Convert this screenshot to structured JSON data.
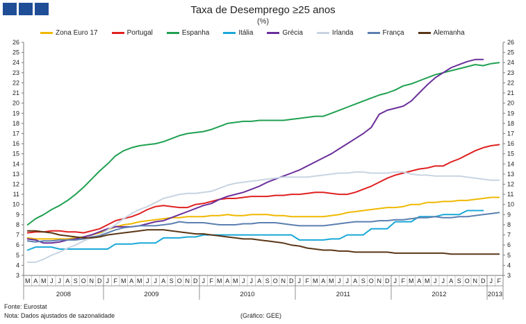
{
  "header": {
    "title": "Taxa de Desemprego ≥25 anos",
    "subtitle": "(%)"
  },
  "footer": {
    "source": "Fonte: Eurostat",
    "note": "Nota: Dados ajustados de sazonalidade",
    "credit": "(Gráfico: GEE)"
  },
  "chart_data": {
    "type": "line",
    "title": "Taxa de Desemprego ≥25 anos",
    "subtitle": "(%)",
    "ylim": [
      3,
      26
    ],
    "y_ticks": [
      3,
      4,
      5,
      6,
      7,
      8,
      9,
      10,
      11,
      12,
      13,
      14,
      15,
      16,
      17,
      18,
      19,
      20,
      21,
      22,
      23,
      24,
      25,
      26
    ],
    "grid": false,
    "legend_position": "top",
    "x": [
      "2008-03",
      "2008-04",
      "2008-05",
      "2008-06",
      "2008-07",
      "2008-08",
      "2008-09",
      "2008-10",
      "2008-11",
      "2008-12",
      "2009-01",
      "2009-02",
      "2009-03",
      "2009-04",
      "2009-05",
      "2009-06",
      "2009-07",
      "2009-08",
      "2009-09",
      "2009-10",
      "2009-11",
      "2009-12",
      "2010-01",
      "2010-02",
      "2010-03",
      "2010-04",
      "2010-05",
      "2010-06",
      "2010-07",
      "2010-08",
      "2010-09",
      "2010-10",
      "2010-11",
      "2010-12",
      "2011-01",
      "2011-02",
      "2011-03",
      "2011-04",
      "2011-05",
      "2011-06",
      "2011-07",
      "2011-08",
      "2011-09",
      "2011-10",
      "2011-11",
      "2011-12",
      "2012-01",
      "2012-02",
      "2012-03",
      "2012-04",
      "2012-05",
      "2012-06",
      "2012-07",
      "2012-08",
      "2012-09",
      "2012-10",
      "2012-11",
      "2012-12",
      "2013-01",
      "2013-02"
    ],
    "x_tick_labels": [
      "M",
      "A",
      "M",
      "J",
      "J",
      "A",
      "S",
      "O",
      "N",
      "D",
      "J",
      "F",
      "M",
      "A",
      "M",
      "J",
      "J",
      "A",
      "S",
      "O",
      "N",
      "D",
      "J",
      "F",
      "M",
      "A",
      "M",
      "J",
      "J",
      "A",
      "S",
      "O",
      "N",
      "D",
      "J",
      "F",
      "M",
      "A",
      "M",
      "J",
      "J",
      "A",
      "S",
      "O",
      "N",
      "D",
      "J",
      "F",
      "M",
      "A",
      "M",
      "J",
      "J",
      "A",
      "S",
      "O",
      "N",
      "D",
      "J",
      "F"
    ],
    "years": [
      {
        "label": "2008",
        "start": 0,
        "end": 9
      },
      {
        "label": "2009",
        "start": 10,
        "end": 21
      },
      {
        "label": "2010",
        "start": 22,
        "end": 33
      },
      {
        "label": "2011",
        "start": 34,
        "end": 45
      },
      {
        "label": "2012",
        "start": 46,
        "end": 57
      },
      {
        "label": "2013",
        "start": 58,
        "end": 59
      }
    ],
    "series": [
      {
        "name": "Zona Euro 17",
        "color": "#f0b800",
        "values": [
          6.7,
          6.6,
          6.6,
          6.6,
          6.6,
          6.6,
          6.7,
          6.8,
          7.0,
          7.2,
          7.5,
          7.8,
          8.0,
          8.1,
          8.3,
          8.4,
          8.5,
          8.6,
          8.7,
          8.7,
          8.8,
          8.8,
          8.8,
          8.9,
          8.9,
          9.0,
          8.9,
          8.9,
          9.0,
          9.0,
          9.0,
          8.9,
          8.9,
          8.8,
          8.8,
          8.8,
          8.8,
          8.8,
          8.9,
          9.0,
          9.2,
          9.3,
          9.4,
          9.5,
          9.6,
          9.7,
          9.7,
          9.8,
          10.0,
          10.0,
          10.2,
          10.2,
          10.3,
          10.3,
          10.4,
          10.4,
          10.5,
          10.6,
          10.7,
          10.7
        ]
      },
      {
        "name": "Portugal",
        "color": "#e02020",
        "values": [
          7.2,
          7.3,
          7.3,
          7.4,
          7.4,
          7.3,
          7.3,
          7.2,
          7.4,
          7.6,
          8.0,
          8.4,
          8.6,
          8.8,
          9.1,
          9.5,
          9.8,
          9.9,
          9.8,
          9.7,
          9.7,
          10.0,
          10.1,
          10.3,
          10.5,
          10.6,
          10.6,
          10.7,
          10.8,
          10.8,
          10.8,
          10.9,
          10.9,
          11.0,
          11.0,
          11.1,
          11.2,
          11.2,
          11.1,
          11.0,
          11.0,
          11.2,
          11.5,
          11.8,
          12.2,
          12.6,
          12.9,
          13.1,
          13.3,
          13.5,
          13.6,
          13.8,
          13.8,
          14.2,
          14.5,
          14.9,
          15.3,
          15.6,
          15.8,
          15.9
        ]
      },
      {
        "name": "Espanha",
        "color": "#1fa050",
        "values": [
          8.0,
          8.6,
          9.0,
          9.5,
          9.9,
          10.4,
          11.0,
          11.7,
          12.5,
          13.3,
          14.0,
          14.8,
          15.3,
          15.6,
          15.8,
          15.9,
          16.0,
          16.2,
          16.5,
          16.8,
          17.0,
          17.1,
          17.2,
          17.4,
          17.7,
          18.0,
          18.1,
          18.2,
          18.2,
          18.3,
          18.3,
          18.3,
          18.3,
          18.4,
          18.5,
          18.6,
          18.7,
          18.7,
          19.0,
          19.3,
          19.6,
          19.9,
          20.2,
          20.5,
          20.8,
          21.0,
          21.3,
          21.7,
          21.9,
          22.2,
          22.5,
          22.8,
          23.0,
          23.2,
          23.4,
          23.6,
          23.8,
          23.7,
          23.9,
          24.0
        ]
      },
      {
        "name": "Itália",
        "color": "#19a8d8",
        "values": [
          5.5,
          5.8,
          5.8,
          5.8,
          5.6,
          5.6,
          5.6,
          5.6,
          5.6,
          5.6,
          5.6,
          6.1,
          6.1,
          6.1,
          6.2,
          6.2,
          6.2,
          6.7,
          6.7,
          6.7,
          6.8,
          6.8,
          7.0,
          7.0,
          7.0,
          7.0,
          7.0,
          7.0,
          7.0,
          7.0,
          7.0,
          7.0,
          7.0,
          7.0,
          6.5,
          6.5,
          6.5,
          6.5,
          6.6,
          6.6,
          7.0,
          7.0,
          7.0,
          7.6,
          7.6,
          7.6,
          8.3,
          8.3,
          8.3,
          8.8,
          8.8,
          8.8,
          9.0,
          9.0,
          9.0,
          9.4,
          9.4,
          9.4,
          null,
          null
        ]
      },
      {
        "name": "Grécia",
        "color": "#6a2f9a",
        "values": [
          6.6,
          6.5,
          6.2,
          6.2,
          6.3,
          6.5,
          6.6,
          6.8,
          7.0,
          7.3,
          7.6,
          7.8,
          7.8,
          7.8,
          7.9,
          8.1,
          8.3,
          8.4,
          8.7,
          9.0,
          9.3,
          9.6,
          9.9,
          10.1,
          10.5,
          10.8,
          11.0,
          11.2,
          11.5,
          11.8,
          12.2,
          12.5,
          12.8,
          13.1,
          13.4,
          13.8,
          14.2,
          14.6,
          15.0,
          15.5,
          16.0,
          16.5,
          17.0,
          17.6,
          18.9,
          19.3,
          19.5,
          19.7,
          20.2,
          21.0,
          21.8,
          22.5,
          23.0,
          23.5,
          23.8,
          24.1,
          24.3,
          24.3,
          null,
          null
        ]
      },
      {
        "name": "Irlanda",
        "color": "#c8d4e2",
        "values": [
          4.3,
          4.3,
          4.6,
          5.0,
          5.3,
          5.7,
          6.0,
          6.4,
          6.7,
          7.0,
          7.5,
          8.0,
          8.6,
          9.1,
          9.5,
          9.8,
          10.2,
          10.6,
          10.8,
          11.0,
          11.1,
          11.1,
          11.2,
          11.3,
          11.6,
          11.9,
          12.1,
          12.2,
          12.3,
          12.4,
          12.5,
          12.6,
          12.7,
          12.7,
          12.7,
          12.7,
          12.8,
          12.9,
          13.0,
          13.1,
          13.1,
          13.2,
          13.2,
          13.1,
          13.1,
          13.1,
          13.2,
          13.2,
          13.0,
          12.9,
          12.9,
          12.8,
          12.8,
          12.8,
          12.8,
          12.7,
          12.6,
          12.5,
          12.4,
          12.4
        ]
      },
      {
        "name": "França",
        "color": "#5b7fb0",
        "values": [
          6.4,
          6.3,
          6.4,
          6.4,
          6.5,
          6.5,
          6.5,
          6.6,
          6.8,
          6.9,
          7.2,
          7.5,
          7.7,
          7.8,
          7.9,
          7.9,
          7.9,
          8.0,
          8.1,
          8.3,
          8.2,
          8.2,
          8.2,
          8.1,
          8.0,
          8.0,
          8.0,
          8.1,
          8.1,
          8.2,
          8.2,
          8.2,
          8.1,
          8.0,
          7.9,
          7.9,
          7.9,
          7.9,
          8.0,
          8.1,
          8.2,
          8.3,
          8.3,
          8.3,
          8.4,
          8.4,
          8.5,
          8.5,
          8.6,
          8.7,
          8.7,
          8.8,
          8.7,
          8.7,
          8.8,
          8.8,
          8.9,
          9.0,
          9.1,
          9.2
        ]
      },
      {
        "name": "Alemanha",
        "color": "#5a3616",
        "values": [
          7.4,
          7.4,
          7.3,
          7.2,
          7.0,
          6.9,
          6.8,
          6.7,
          6.7,
          6.8,
          7.0,
          7.1,
          7.2,
          7.3,
          7.4,
          7.5,
          7.5,
          7.5,
          7.4,
          7.3,
          7.2,
          7.1,
          7.1,
          7.0,
          6.9,
          6.8,
          6.7,
          6.6,
          6.6,
          6.5,
          6.4,
          6.3,
          6.2,
          6.0,
          5.9,
          5.7,
          5.6,
          5.5,
          5.5,
          5.4,
          5.4,
          5.3,
          5.3,
          5.3,
          5.3,
          5.3,
          5.2,
          5.2,
          5.2,
          5.2,
          5.2,
          5.2,
          5.2,
          5.1,
          5.1,
          5.1,
          5.1,
          5.1,
          5.1,
          5.1
        ]
      }
    ]
  }
}
